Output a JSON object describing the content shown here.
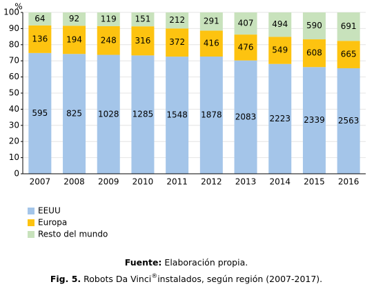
{
  "chart_data": {
    "type": "bar",
    "stacking": "percent",
    "y_label": "%",
    "categories": [
      "2007",
      "2008",
      "2009",
      "2010",
      "2011",
      "2012",
      "2013",
      "2014",
      "2015",
      "2016"
    ],
    "series": [
      {
        "name": "EEUU",
        "color": "#a4c5e9",
        "values": [
          595,
          825,
          1028,
          1285,
          1548,
          1878,
          2083,
          2223,
          2339,
          2563
        ]
      },
      {
        "name": "Europa",
        "color": "#fdc310",
        "values": [
          136,
          194,
          248,
          316,
          372,
          416,
          476,
          549,
          608,
          665
        ]
      },
      {
        "name": "Resto del mundo",
        "color": "#c8e2bc",
        "values": [
          64,
          92,
          119,
          151,
          212,
          291,
          407,
          494,
          590,
          691
        ]
      }
    ],
    "ylim": [
      0,
      100
    ],
    "yticks": [
      0,
      10,
      20,
      30,
      40,
      50,
      60,
      70,
      80,
      90,
      100
    ],
    "grid": true
  },
  "caption": {
    "source_label": "Fuente:",
    "source_text": "Elaboración propia.",
    "fig_label": "Fig. 5.",
    "fig_text": "Robots Da Vinci",
    "fig_mark": "®",
    "fig_rest": "instalados, según región (2007-2017)."
  }
}
